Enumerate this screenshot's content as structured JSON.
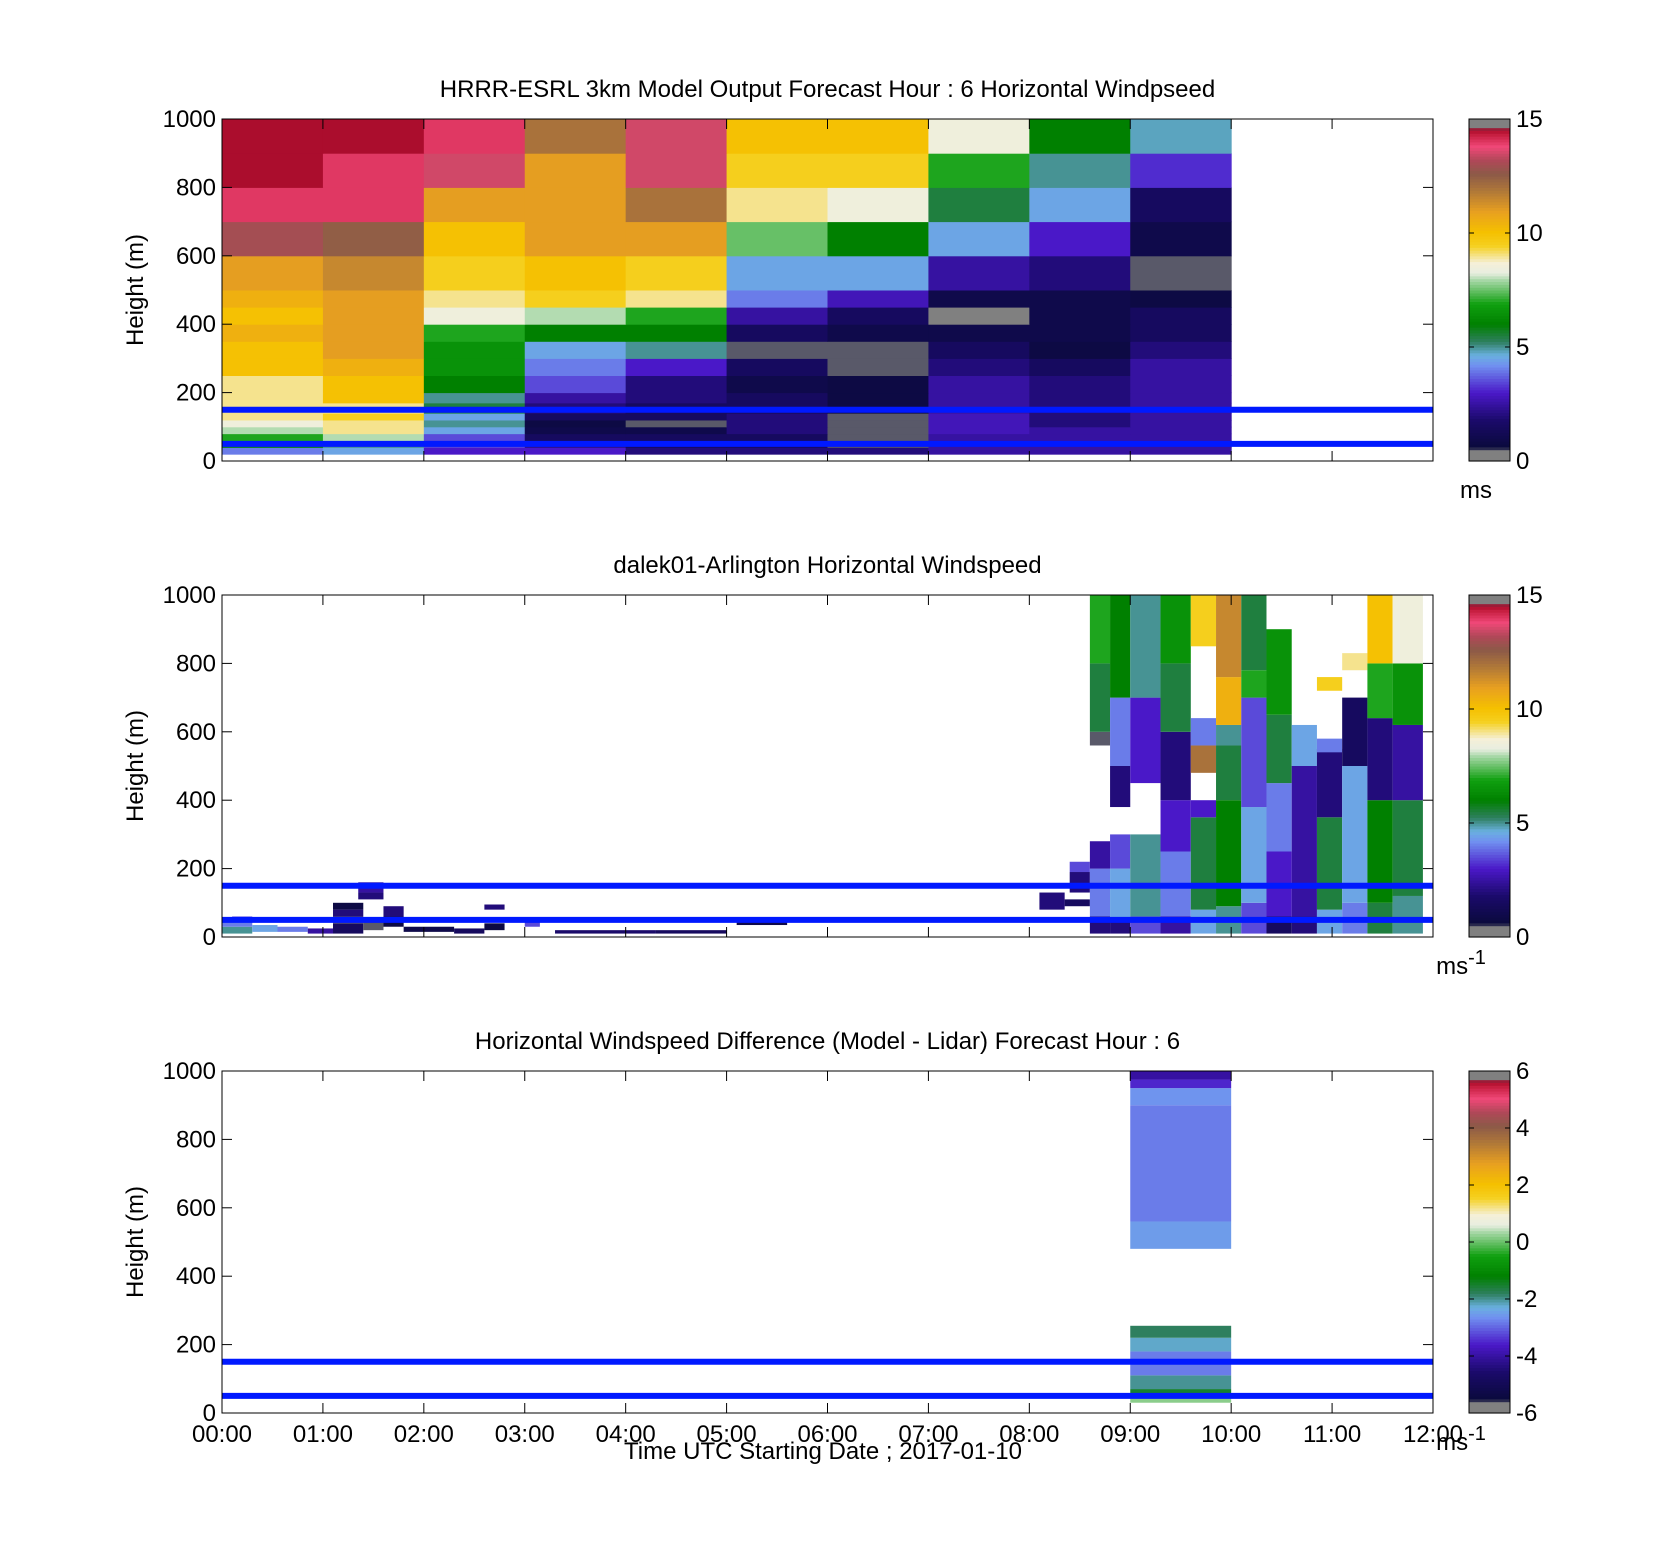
{
  "figure": {
    "xlabel": "Time UTC  Starting Date ; 2017-01-10"
  },
  "colors": {
    "reference_lines": "#0019ff",
    "nodata": "#ffffff",
    "frame": "#000000"
  },
  "chart_data": [
    {
      "type": "heatmap",
      "title": "HRRR-ESRL 3km Model Output   Forecast Hour : 6 Horizontal Windpseed",
      "xlabel": "",
      "ylabel": "Height (m)",
      "x_range_hours": [
        0,
        12
      ],
      "x_ticks": [
        "00:00",
        "01:00",
        "02:00",
        "03:00",
        "04:00",
        "05:00",
        "06:00",
        "07:00",
        "08:00",
        "09:00",
        "10:00",
        "11:00",
        "12:00"
      ],
      "show_x_tick_labels": false,
      "ylim": [
        0,
        1000
      ],
      "y_ticks": [
        "0",
        "200",
        "400",
        "600",
        "800",
        "1000"
      ],
      "grid": false,
      "colorbar": {
        "min": 0,
        "max": 15,
        "ticks": [
          "0",
          "5",
          "10",
          "15"
        ],
        "label": "ms",
        "label_sup": ""
      },
      "reference_lines_m": [
        50,
        150
      ],
      "time_bins_hours": [
        0,
        1,
        2,
        3,
        4,
        5,
        6,
        7,
        8,
        9,
        10
      ],
      "height_bins_m": [
        [
          20,
          40
        ],
        [
          40,
          60
        ],
        [
          60,
          80
        ],
        [
          80,
          100
        ],
        [
          100,
          120
        ],
        [
          120,
          140
        ],
        [
          140,
          170
        ],
        [
          170,
          200
        ],
        [
          200,
          250
        ],
        [
          250,
          300
        ],
        [
          300,
          350
        ],
        [
          350,
          400
        ],
        [
          400,
          450
        ],
        [
          450,
          500
        ],
        [
          500,
          600
        ],
        [
          600,
          700
        ],
        [
          700,
          800
        ],
        [
          800,
          900
        ],
        [
          900,
          1000
        ]
      ],
      "values_ms": [
        [
          4.0,
          4.5,
          3.0,
          3.0,
          2.0,
          2.0,
          2.0,
          2.5,
          2.5,
          2.5
        ],
        [
          6.0,
          5.0,
          3.5,
          2.2,
          1.5,
          1.5,
          0.5,
          2.5,
          2.5,
          2.5
        ],
        [
          7.0,
          8.0,
          3.5,
          1.5,
          1.5,
          1.5,
          0.5,
          2.5,
          2.5,
          2.5
        ],
        [
          8.0,
          9.0,
          4.5,
          1.0,
          1.0,
          2.0,
          0.5,
          2.8,
          2.5,
          2.5
        ],
        [
          8.5,
          9.0,
          5.0,
          0.8,
          0.5,
          2.0,
          0.5,
          2.8,
          2.0,
          2.5
        ],
        [
          9.0,
          9.5,
          4.5,
          1.5,
          1.5,
          2.0,
          0.5,
          2.8,
          2.0,
          2.5
        ],
        [
          9.0,
          9.0,
          5.5,
          2.0,
          1.5,
          1.5,
          0.8,
          2.5,
          2.0,
          2.5
        ],
        [
          9.0,
          10.0,
          5.0,
          2.5,
          2.0,
          1.5,
          0.8,
          2.5,
          2.0,
          2.5
        ],
        [
          9.0,
          10.0,
          6.0,
          3.5,
          2.0,
          1.0,
          0.8,
          2.5,
          2.0,
          2.5
        ],
        [
          10.0,
          10.5,
          6.5,
          4.0,
          3.0,
          1.5,
          0.5,
          2.0,
          1.5,
          2.5
        ],
        [
          10.0,
          11.0,
          6.5,
          4.5,
          5.0,
          0.5,
          0.5,
          1.5,
          0.8,
          2.0
        ],
        [
          10.5,
          11.0,
          7.0,
          6.0,
          6.0,
          1.5,
          1.0,
          1.0,
          1.0,
          1.5
        ],
        [
          10.0,
          11.0,
          8.5,
          8.0,
          7.0,
          2.5,
          1.5,
          15.0,
          1.0,
          1.5
        ],
        [
          10.5,
          11.0,
          9.0,
          9.5,
          9.0,
          4.0,
          2.8,
          1.0,
          1.0,
          0.8
        ],
        [
          11.0,
          11.5,
          9.5,
          10.0,
          9.5,
          4.5,
          4.5,
          2.5,
          2.0,
          0.5
        ],
        [
          13.0,
          12.5,
          10.0,
          11.0,
          11.0,
          7.5,
          6.0,
          4.5,
          3.0,
          1.0
        ],
        [
          14.0,
          14.0,
          11.0,
          11.0,
          12.0,
          9.0,
          8.5,
          5.5,
          4.5,
          1.5
        ],
        [
          14.5,
          14.0,
          13.5,
          11.0,
          13.5,
          9.5,
          9.5,
          7.0,
          5.0,
          3.2
        ],
        [
          14.5,
          14.5,
          14.0,
          12.0,
          13.5,
          10.0,
          10.0,
          8.5,
          6.0,
          4.8
        ]
      ]
    },
    {
      "type": "heatmap",
      "title": "dalek01-Arlington  Horizontal Windspeed",
      "xlabel": "",
      "ylabel": "Height (m)",
      "x_range_hours": [
        0,
        12
      ],
      "x_ticks": [
        "00:00",
        "01:00",
        "02:00",
        "03:00",
        "04:00",
        "05:00",
        "06:00",
        "07:00",
        "08:00",
        "09:00",
        "10:00",
        "11:00",
        "12:00"
      ],
      "show_x_tick_labels": false,
      "ylim": [
        0,
        1000
      ],
      "y_ticks": [
        "0",
        "200",
        "400",
        "600",
        "800",
        "1000"
      ],
      "grid": false,
      "colorbar": {
        "min": 0,
        "max": 15,
        "ticks": [
          "0",
          "5",
          "10",
          "15"
        ],
        "label": "ms",
        "label_sup": "-1"
      },
      "reference_lines_m": [
        50,
        150
      ],
      "note_cells": "[t_start_h, t_end_h, z_bottom_m, z_top_m, speed_ms]",
      "cells": [
        [
          0.0,
          0.3,
          10,
          30,
          5.0
        ],
        [
          0.0,
          0.3,
          30,
          50,
          4.0
        ],
        [
          0.1,
          0.3,
          50,
          60,
          3.5
        ],
        [
          0.3,
          0.55,
          15,
          35,
          4.5
        ],
        [
          0.55,
          0.85,
          15,
          30,
          4.0
        ],
        [
          0.85,
          1.1,
          10,
          25,
          2.5
        ],
        [
          1.1,
          1.4,
          10,
          40,
          1.5
        ],
        [
          1.1,
          1.4,
          40,
          60,
          0.5
        ],
        [
          1.1,
          1.4,
          60,
          80,
          2.0
        ],
        [
          1.1,
          1.4,
          80,
          100,
          0.8
        ],
        [
          1.4,
          1.6,
          20,
          50,
          0.5
        ],
        [
          1.35,
          1.6,
          110,
          130,
          2.0
        ],
        [
          1.35,
          1.6,
          130,
          160,
          2.5
        ],
        [
          1.6,
          1.8,
          30,
          60,
          0.8
        ],
        [
          1.6,
          1.8,
          60,
          90,
          2.0
        ],
        [
          1.8,
          2.3,
          15,
          30,
          1.0
        ],
        [
          2.3,
          2.6,
          10,
          25,
          1.5
        ],
        [
          2.6,
          2.8,
          20,
          40,
          0.8
        ],
        [
          2.6,
          2.8,
          80,
          95,
          2.0
        ],
        [
          3.0,
          3.15,
          30,
          45,
          3.5
        ],
        [
          3.3,
          4.3,
          10,
          20,
          1.8
        ],
        [
          4.3,
          5.0,
          10,
          20,
          1.5
        ],
        [
          5.1,
          5.6,
          35,
          50,
          1.0
        ],
        [
          8.1,
          8.35,
          80,
          130,
          2.0
        ],
        [
          8.35,
          8.6,
          90,
          110,
          1.5
        ],
        [
          8.4,
          8.6,
          130,
          190,
          2.0
        ],
        [
          8.4,
          8.6,
          190,
          220,
          3.5
        ],
        [
          8.6,
          8.8,
          10,
          60,
          2.0
        ],
        [
          8.6,
          8.8,
          60,
          200,
          4.0
        ],
        [
          8.6,
          8.8,
          200,
          280,
          2.5
        ],
        [
          8.6,
          8.8,
          560,
          600,
          0.5
        ],
        [
          8.6,
          8.8,
          600,
          800,
          5.5
        ],
        [
          8.6,
          8.8,
          800,
          1000,
          7.0
        ],
        [
          8.8,
          9.0,
          10,
          50,
          2.0
        ],
        [
          8.8,
          9.0,
          50,
          200,
          4.5
        ],
        [
          8.8,
          9.0,
          200,
          300,
          3.5
        ],
        [
          8.8,
          9.0,
          380,
          500,
          2.0
        ],
        [
          8.8,
          9.0,
          500,
          700,
          4.0
        ],
        [
          8.8,
          9.0,
          700,
          1000,
          6.0
        ],
        [
          9.0,
          9.3,
          10,
          60,
          3.5
        ],
        [
          9.0,
          9.3,
          60,
          300,
          5.0
        ],
        [
          9.0,
          9.3,
          450,
          700,
          3.0
        ],
        [
          9.0,
          9.3,
          700,
          1000,
          5.0
        ],
        [
          9.3,
          9.6,
          10,
          60,
          2.5
        ],
        [
          9.3,
          9.6,
          60,
          250,
          4.0
        ],
        [
          9.3,
          9.6,
          250,
          400,
          3.0
        ],
        [
          9.3,
          9.6,
          400,
          600,
          2.0
        ],
        [
          9.3,
          9.6,
          600,
          800,
          5.5
        ],
        [
          9.3,
          9.6,
          800,
          1000,
          6.5
        ],
        [
          9.6,
          9.85,
          10,
          80,
          4.5
        ],
        [
          9.6,
          9.85,
          80,
          350,
          5.5
        ],
        [
          9.6,
          9.85,
          350,
          400,
          3.0
        ],
        [
          9.6,
          9.85,
          480,
          560,
          12.0
        ],
        [
          9.6,
          9.85,
          560,
          640,
          4.0
        ],
        [
          9.6,
          9.85,
          850,
          1000,
          9.5
        ],
        [
          9.85,
          10.1,
          10,
          90,
          5.0
        ],
        [
          9.85,
          10.1,
          90,
          400,
          6.0
        ],
        [
          9.85,
          10.1,
          400,
          560,
          5.5
        ],
        [
          9.85,
          10.1,
          560,
          620,
          5.0
        ],
        [
          9.85,
          10.1,
          620,
          760,
          10.5
        ],
        [
          9.85,
          10.1,
          760,
          1000,
          11.5
        ],
        [
          10.1,
          10.35,
          10,
          100,
          3.5
        ],
        [
          10.1,
          10.35,
          100,
          380,
          4.5
        ],
        [
          10.1,
          10.35,
          380,
          700,
          3.5
        ],
        [
          10.1,
          10.35,
          700,
          780,
          7.0
        ],
        [
          10.1,
          10.35,
          780,
          1000,
          5.5
        ],
        [
          10.35,
          10.6,
          10,
          60,
          1.5
        ],
        [
          10.35,
          10.6,
          60,
          250,
          3.0
        ],
        [
          10.35,
          10.6,
          250,
          450,
          4.0
        ],
        [
          10.35,
          10.6,
          450,
          650,
          5.5
        ],
        [
          10.35,
          10.6,
          650,
          900,
          6.5
        ],
        [
          10.6,
          10.85,
          10,
          60,
          2.0
        ],
        [
          10.6,
          10.85,
          60,
          250,
          2.5
        ],
        [
          10.6,
          10.85,
          250,
          500,
          2.5
        ],
        [
          10.6,
          10.85,
          500,
          620,
          4.5
        ],
        [
          10.85,
          11.1,
          10,
          80,
          4.5
        ],
        [
          10.85,
          11.1,
          80,
          350,
          5.5
        ],
        [
          10.85,
          11.1,
          350,
          550,
          2.0
        ],
        [
          10.85,
          11.1,
          540,
          580,
          4.0
        ],
        [
          10.85,
          11.1,
          720,
          760,
          9.5
        ],
        [
          11.1,
          11.35,
          10,
          100,
          4.0
        ],
        [
          11.1,
          11.35,
          100,
          500,
          4.5
        ],
        [
          11.1,
          11.35,
          500,
          700,
          1.5
        ],
        [
          11.1,
          11.35,
          780,
          830,
          9.0
        ],
        [
          11.35,
          11.6,
          10,
          100,
          5.5
        ],
        [
          11.35,
          11.6,
          100,
          400,
          6.0
        ],
        [
          11.35,
          11.6,
          400,
          640,
          2.0
        ],
        [
          11.35,
          11.6,
          640,
          800,
          7.0
        ],
        [
          11.35,
          11.6,
          800,
          1000,
          10.0
        ],
        [
          11.6,
          11.9,
          10,
          120,
          5.0
        ],
        [
          11.6,
          11.9,
          120,
          400,
          5.5
        ],
        [
          11.6,
          11.9,
          400,
          620,
          2.5
        ],
        [
          11.6,
          11.9,
          620,
          800,
          6.5
        ],
        [
          11.6,
          11.9,
          800,
          1000,
          8.5
        ]
      ]
    },
    {
      "type": "heatmap",
      "title": "Horizontal Windspeed Difference (Model - Lidar) Forecast Hour : 6",
      "xlabel": "Time UTC  Starting Date ; 2017-01-10",
      "ylabel": "Height (m)",
      "x_range_hours": [
        0,
        12
      ],
      "x_ticks": [
        "00:00",
        "01:00",
        "02:00",
        "03:00",
        "04:00",
        "05:00",
        "06:00",
        "07:00",
        "08:00",
        "09:00",
        "10:00",
        "11:00",
        "12:00"
      ],
      "show_x_tick_labels": true,
      "ylim": [
        0,
        1000
      ],
      "y_ticks": [
        "0",
        "200",
        "400",
        "600",
        "800",
        "1000"
      ],
      "grid": false,
      "colorbar": {
        "min": -6,
        "max": 6,
        "ticks": [
          "-6",
          "-4",
          "-2",
          "0",
          "2",
          "4",
          "6"
        ],
        "label": "ms",
        "label_sup": "-1"
      },
      "reference_lines_m": [
        50,
        150
      ],
      "note_cells": "[t_start_h, t_end_h, z_bottom_m, z_top_m, difference_ms]",
      "cells": [
        [
          9.0,
          10.0,
          30,
          45,
          0.2
        ],
        [
          9.0,
          10.0,
          45,
          70,
          -1.5
        ],
        [
          9.0,
          10.0,
          70,
          110,
          -2.0
        ],
        [
          9.0,
          10.0,
          110,
          180,
          -2.8
        ],
        [
          9.0,
          10.0,
          180,
          220,
          -2.2
        ],
        [
          9.0,
          10.0,
          220,
          255,
          -1.8
        ],
        [
          9.0,
          10.0,
          480,
          560,
          -2.5
        ],
        [
          9.0,
          10.0,
          560,
          900,
          -2.8
        ],
        [
          9.0,
          10.0,
          900,
          950,
          -2.6
        ],
        [
          9.0,
          10.0,
          950,
          975,
          -3.5
        ],
        [
          9.0,
          10.0,
          975,
          1000,
          -4.0
        ]
      ]
    }
  ]
}
